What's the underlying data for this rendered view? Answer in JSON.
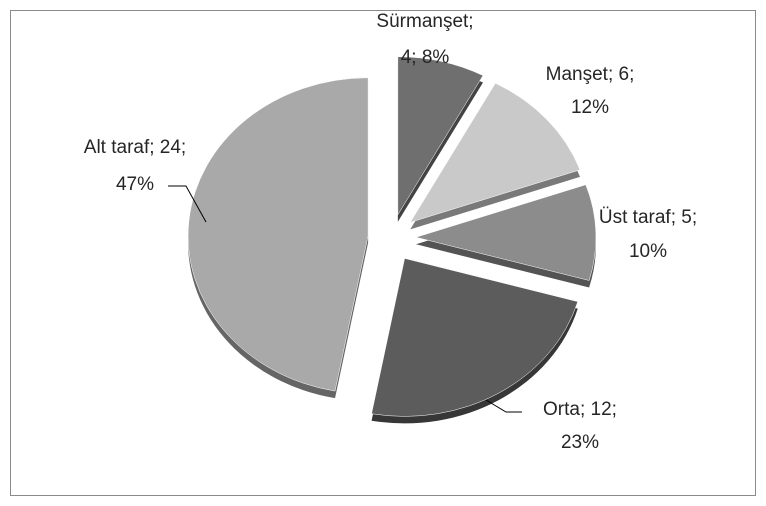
{
  "chart_data": {
    "type": "pie",
    "categories": [
      "Sürmanşet",
      "Manşet",
      "Üst taraf",
      "Orta",
      "Alt taraf"
    ],
    "values": [
      4,
      6,
      5,
      12,
      24
    ],
    "value_labels": [
      [
        "Sürmanşet;",
        "4; 8%"
      ],
      [
        "Manşet; 6;",
        "12%"
      ],
      [
        "Üst taraf; 5;",
        "10%"
      ],
      [
        "Orta; 12;",
        "23%"
      ],
      [
        "Alt taraf; 24;",
        "47%"
      ]
    ],
    "colors": [
      "#6f6f6f",
      "#c9c9c9",
      "#8c8c8c",
      "#5c5c5c",
      "#a9a9a9"
    ]
  }
}
